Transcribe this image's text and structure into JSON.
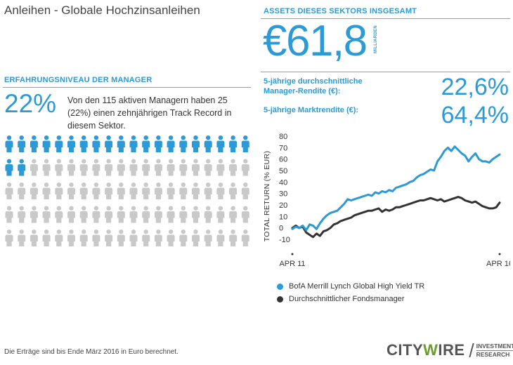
{
  "page": {
    "title": "Anleihen - Globale Hochzinsanleihen"
  },
  "assets": {
    "heading": "ASSETS DIESES SEKTORS INSGESAMT",
    "value": "€61,8",
    "unit": "MILLIARDEN"
  },
  "managers": {
    "heading": "ERFAHRUNGSNIVEAU DER MANAGER",
    "percent": "22%",
    "description": "Von den 115 aktiven Managern haben 25 (22%) einen zehnjährigen Track Record in diesem Sektor.",
    "icons_total": 100,
    "icons_highlighted": 22,
    "highlight_color": "#2b9ad6",
    "muted_color": "#c9c9c9"
  },
  "returns": {
    "manager_label": "5-jährige durchschnittliche Manager-Rendite (€):",
    "manager_value": "22,6%",
    "market_label": "5-jährige Marktrendite (€):",
    "market_value": "64,4%"
  },
  "chart_data": {
    "type": "line",
    "ylabel": "TOTAL RETURN (% EUR)",
    "xlabel": "",
    "ylim": [
      -10,
      80
    ],
    "yticks": [
      80,
      70,
      60,
      50,
      40,
      30,
      20,
      10,
      0,
      -10
    ],
    "xlim": [
      0,
      60
    ],
    "xticks": [
      {
        "x": 0,
        "label": "APR 11"
      },
      {
        "x": 60,
        "label": "APR 16"
      }
    ],
    "grid": false,
    "legend_position": "bottom",
    "series": [
      {
        "name": "BofA Merrill Lynch Global High Yield TR",
        "color": "#2b9ad6",
        "x": [
          0,
          1,
          2,
          3,
          4,
          5,
          6,
          7,
          8,
          9,
          10,
          11,
          12,
          13,
          14,
          15,
          16,
          17,
          18,
          19,
          20,
          21,
          22,
          23,
          24,
          25,
          26,
          27,
          28,
          29,
          30,
          31,
          32,
          33,
          34,
          35,
          36,
          37,
          38,
          39,
          40,
          41,
          42,
          43,
          44,
          45,
          46,
          47,
          48,
          49,
          50,
          51,
          52,
          53,
          54,
          55,
          56,
          57,
          58,
          59,
          60
        ],
        "values": [
          -1,
          1,
          0,
          2,
          -2,
          3,
          2,
          -1,
          4,
          8,
          11,
          13,
          14,
          15,
          18,
          21,
          25,
          24,
          25,
          26,
          27,
          28,
          29,
          28,
          31,
          30,
          32,
          31,
          33,
          32,
          35,
          36,
          37,
          38,
          40,
          41,
          44,
          46,
          47,
          49,
          51,
          50,
          58,
          62,
          67,
          70,
          67,
          71,
          68,
          65,
          63,
          58,
          62,
          65,
          60,
          58,
          58,
          57,
          60,
          62,
          64
        ]
      },
      {
        "name": "Durchschnittlicher Fondsmanager",
        "color": "#333333",
        "x": [
          0,
          1,
          2,
          3,
          4,
          5,
          6,
          7,
          8,
          9,
          10,
          11,
          12,
          13,
          14,
          15,
          16,
          17,
          18,
          19,
          20,
          21,
          22,
          23,
          24,
          25,
          26,
          27,
          28,
          29,
          30,
          31,
          32,
          33,
          34,
          35,
          36,
          37,
          38,
          39,
          40,
          41,
          42,
          43,
          44,
          45,
          46,
          47,
          48,
          49,
          50,
          51,
          52,
          53,
          54,
          55,
          56,
          57,
          58,
          59,
          60
        ],
        "values": [
          0,
          2,
          0,
          1,
          -4,
          -6,
          -8,
          -5,
          -7,
          -3,
          -2,
          0,
          3,
          4,
          6,
          7,
          8,
          9,
          11,
          12,
          13,
          14,
          15,
          15,
          16,
          17,
          14,
          16,
          15,
          16,
          18,
          18,
          19,
          20,
          21,
          22,
          23,
          24,
          24,
          25,
          26,
          25,
          24,
          25,
          23,
          24,
          25,
          26,
          27,
          26,
          24,
          23,
          22,
          23,
          21,
          19,
          18,
          17,
          17,
          18,
          22
        ]
      }
    ]
  },
  "footer": {
    "note": "Die Erträge sind bis Ende März 2016 in Euro berechnet.",
    "logo_main_a": "CITY",
    "logo_main_w": "W",
    "logo_main_b": "IRE",
    "logo_sub_1": "INVESTMENT",
    "logo_sub_2": "RESEARCH"
  }
}
